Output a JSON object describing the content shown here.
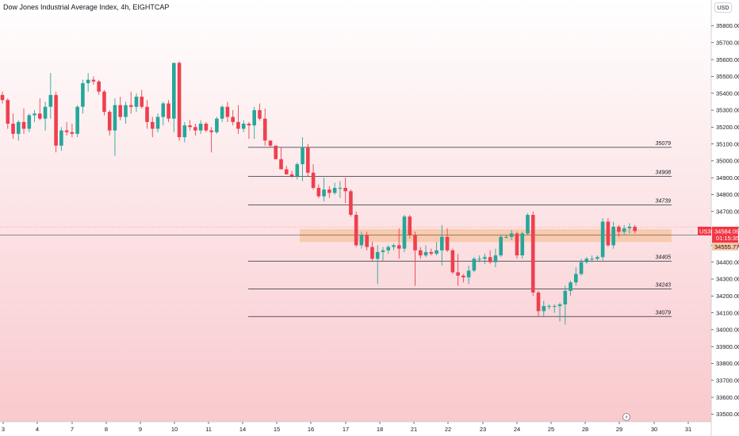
{
  "header": {
    "title": "Dow Jones Industrial Average Index, 4h, EIGHTCAP"
  },
  "currency": "USD",
  "colors": {
    "up": "#26a69a",
    "down": "#ef3f4f",
    "zone": "#f7c6a5",
    "label_red": "#f23645"
  },
  "price_tags": {
    "symbol": "US30",
    "price": "34584.06",
    "countdown": "01:15:35",
    "zone_label": "34555.77"
  },
  "replay_icon": "lightning-icon",
  "chart_data": {
    "type": "candlestick",
    "title": "Dow Jones Industrial Average Index, 4h, EIGHTCAP",
    "ylim": [
      33450,
      35900
    ],
    "y_ticks": [
      35800,
      35700,
      35600,
      35500,
      35400,
      35300,
      35200,
      35100,
      35000,
      34900,
      34800,
      34700,
      34600,
      34500,
      34400,
      34300,
      34200,
      34100,
      34000,
      33900,
      33800,
      33700,
      33600,
      33500
    ],
    "x_ticks": [
      "3",
      "4",
      "7",
      "8",
      "9",
      "10",
      "11",
      "14",
      "15",
      "16",
      "17",
      "18",
      "21",
      "22",
      "23",
      "24",
      "25",
      "28",
      "29",
      "30",
      "31"
    ],
    "levels": [
      {
        "label": "35079",
        "value": 35080
      },
      {
        "label": "34908",
        "value": 34908
      },
      {
        "label": "34739",
        "value": 34739
      },
      {
        "label": "34405",
        "value": 34405
      },
      {
        "label": "34243",
        "value": 34242
      },
      {
        "label": "34079",
        "value": 34078
      }
    ],
    "current_price": 34584,
    "zone": {
      "from": 34520,
      "to": 34595
    },
    "candles": [
      [
        35390,
        35410,
        35340,
        35360
      ],
      [
        35360,
        35370,
        35190,
        35220
      ],
      [
        35220,
        35280,
        35130,
        35160
      ],
      [
        35160,
        35240,
        35120,
        35230
      ],
      [
        35230,
        35310,
        35160,
        35190
      ],
      [
        35190,
        35280,
        35170,
        35270
      ],
      [
        35270,
        35300,
        35230,
        35280
      ],
      [
        35280,
        35370,
        35240,
        35250
      ],
      [
        35250,
        35350,
        35180,
        35320
      ],
      [
        35320,
        35520,
        35250,
        35390
      ],
      [
        35390,
        35410,
        35050,
        35090
      ],
      [
        35090,
        35200,
        35060,
        35180
      ],
      [
        35180,
        35230,
        35150,
        35170
      ],
      [
        35170,
        35220,
        35140,
        35160
      ],
      [
        35160,
        35330,
        35140,
        35320
      ],
      [
        35320,
        35480,
        35280,
        35460
      ],
      [
        35460,
        35520,
        35410,
        35480
      ],
      [
        35480,
        35500,
        35450,
        35470
      ],
      [
        35470,
        35480,
        35390,
        35410
      ],
      [
        35410,
        35420,
        35270,
        35290
      ],
      [
        35290,
        35300,
        35150,
        35180
      ],
      [
        35180,
        35370,
        35030,
        35330
      ],
      [
        35330,
        35380,
        35240,
        35260
      ],
      [
        35260,
        35350,
        35220,
        35330
      ],
      [
        35330,
        35410,
        35280,
        35320
      ],
      [
        35320,
        35400,
        35290,
        35380
      ],
      [
        35380,
        35420,
        35310,
        35320
      ],
      [
        35320,
        35360,
        35190,
        35230
      ],
      [
        35230,
        35260,
        35140,
        35190
      ],
      [
        35190,
        35280,
        35170,
        35260
      ],
      [
        35260,
        35350,
        35210,
        35340
      ],
      [
        35340,
        35360,
        35230,
        35250
      ],
      [
        35250,
        35580,
        35170,
        35580
      ],
      [
        35580,
        35590,
        35120,
        35140
      ],
      [
        35140,
        35230,
        35110,
        35210
      ],
      [
        35210,
        35240,
        35180,
        35200
      ],
      [
        35200,
        35220,
        35150,
        35180
      ],
      [
        35180,
        35240,
        35160,
        35220
      ],
      [
        35220,
        35230,
        35170,
        35180
      ],
      [
        35180,
        35200,
        35050,
        35170
      ],
      [
        35170,
        35260,
        35160,
        35250
      ],
      [
        35250,
        35330,
        35230,
        35320
      ],
      [
        35320,
        35350,
        35230,
        35260
      ],
      [
        35260,
        35300,
        35210,
        35230
      ],
      [
        35230,
        35330,
        35160,
        35190
      ],
      [
        35190,
        35240,
        35170,
        35220
      ],
      [
        35220,
        35230,
        35130,
        35210
      ],
      [
        35210,
        35320,
        35130,
        35300
      ],
      [
        35300,
        35340,
        35240,
        35250
      ],
      [
        35250,
        35310,
        35090,
        35120
      ],
      [
        35120,
        35120,
        35080,
        35090
      ],
      [
        35090,
        35090,
        35010,
        35010
      ],
      [
        35010,
        35080,
        34950,
        34950
      ],
      [
        34950,
        34970,
        34920,
        34920
      ],
      [
        34920,
        34940,
        34900,
        34910
      ],
      [
        34910,
        34990,
        34890,
        34980
      ],
      [
        34980,
        35140,
        34880,
        35080
      ],
      [
        35080,
        35100,
        34910,
        34930
      ],
      [
        34930,
        34980,
        34830,
        34840
      ],
      [
        34840,
        34860,
        34780,
        34790
      ],
      [
        34790,
        34900,
        34760,
        34830
      ],
      [
        34830,
        34850,
        34780,
        34810
      ],
      [
        34810,
        34870,
        34800,
        34840
      ],
      [
        34840,
        34880,
        34780,
        34840
      ],
      [
        34840,
        34900,
        34750,
        34820
      ],
      [
        34820,
        34830,
        34670,
        34680
      ],
      [
        34680,
        34700,
        34490,
        34500
      ],
      [
        34500,
        34580,
        34480,
        34560
      ],
      [
        34560,
        34580,
        34470,
        34490
      ],
      [
        34490,
        34520,
        34410,
        34420
      ],
      [
        34420,
        34500,
        34270,
        34460
      ],
      [
        34460,
        34490,
        34410,
        34470
      ],
      [
        34470,
        34500,
        34450,
        34490
      ],
      [
        34490,
        34510,
        34470,
        34500
      ],
      [
        34500,
        34600,
        34420,
        34480
      ],
      [
        34480,
        34680,
        34460,
        34670
      ],
      [
        34670,
        34680,
        34540,
        34560
      ],
      [
        34560,
        34580,
        34260,
        34470
      ],
      [
        34470,
        34490,
        34420,
        34440
      ],
      [
        34440,
        34500,
        34430,
        34460
      ],
      [
        34460,
        34480,
        34440,
        34450
      ],
      [
        34450,
        34520,
        34440,
        34470
      ],
      [
        34470,
        34620,
        34380,
        34550
      ],
      [
        34550,
        34600,
        34460,
        34470
      ],
      [
        34470,
        34480,
        34330,
        34340
      ],
      [
        34340,
        34450,
        34260,
        34320
      ],
      [
        34320,
        34330,
        34280,
        34310
      ],
      [
        34310,
        34380,
        34270,
        34350
      ],
      [
        34350,
        34430,
        34340,
        34420
      ],
      [
        34420,
        34440,
        34400,
        34420
      ],
      [
        34420,
        34450,
        34390,
        34430
      ],
      [
        34430,
        34470,
        34390,
        34400
      ],
      [
        34400,
        34480,
        34370,
        34440
      ],
      [
        34440,
        34560,
        34430,
        34550
      ],
      [
        34550,
        34560,
        34540,
        34550
      ],
      [
        34550,
        34590,
        34530,
        34570
      ],
      [
        34570,
        34580,
        34420,
        34440
      ],
      [
        34440,
        34580,
        34420,
        34570
      ],
      [
        34570,
        34690,
        34560,
        34680
      ],
      [
        34680,
        34700,
        34200,
        34220
      ],
      [
        34220,
        34230,
        34080,
        34110
      ],
      [
        34110,
        34170,
        34080,
        34140
      ],
      [
        34140,
        34150,
        34120,
        34140
      ],
      [
        34140,
        34150,
        34100,
        34140
      ],
      [
        34140,
        34160,
        34050,
        34150
      ],
      [
        34150,
        34260,
        34030,
        34230
      ],
      [
        34230,
        34290,
        34200,
        34280
      ],
      [
        34280,
        34370,
        34260,
        34330
      ],
      [
        34330,
        34420,
        34320,
        34400
      ],
      [
        34400,
        34430,
        34390,
        34420
      ],
      [
        34420,
        34440,
        34400,
        34420
      ],
      [
        34420,
        34440,
        34410,
        34430
      ],
      [
        34430,
        34660,
        34410,
        34640
      ],
      [
        34640,
        34660,
        34490,
        34500
      ],
      [
        34500,
        34640,
        34480,
        34610
      ],
      [
        34610,
        34620,
        34550,
        34580
      ],
      [
        34580,
        34620,
        34560,
        34600
      ],
      [
        34600,
        34630,
        34570,
        34610
      ],
      [
        34610,
        34620,
        34570,
        34584
      ]
    ]
  }
}
